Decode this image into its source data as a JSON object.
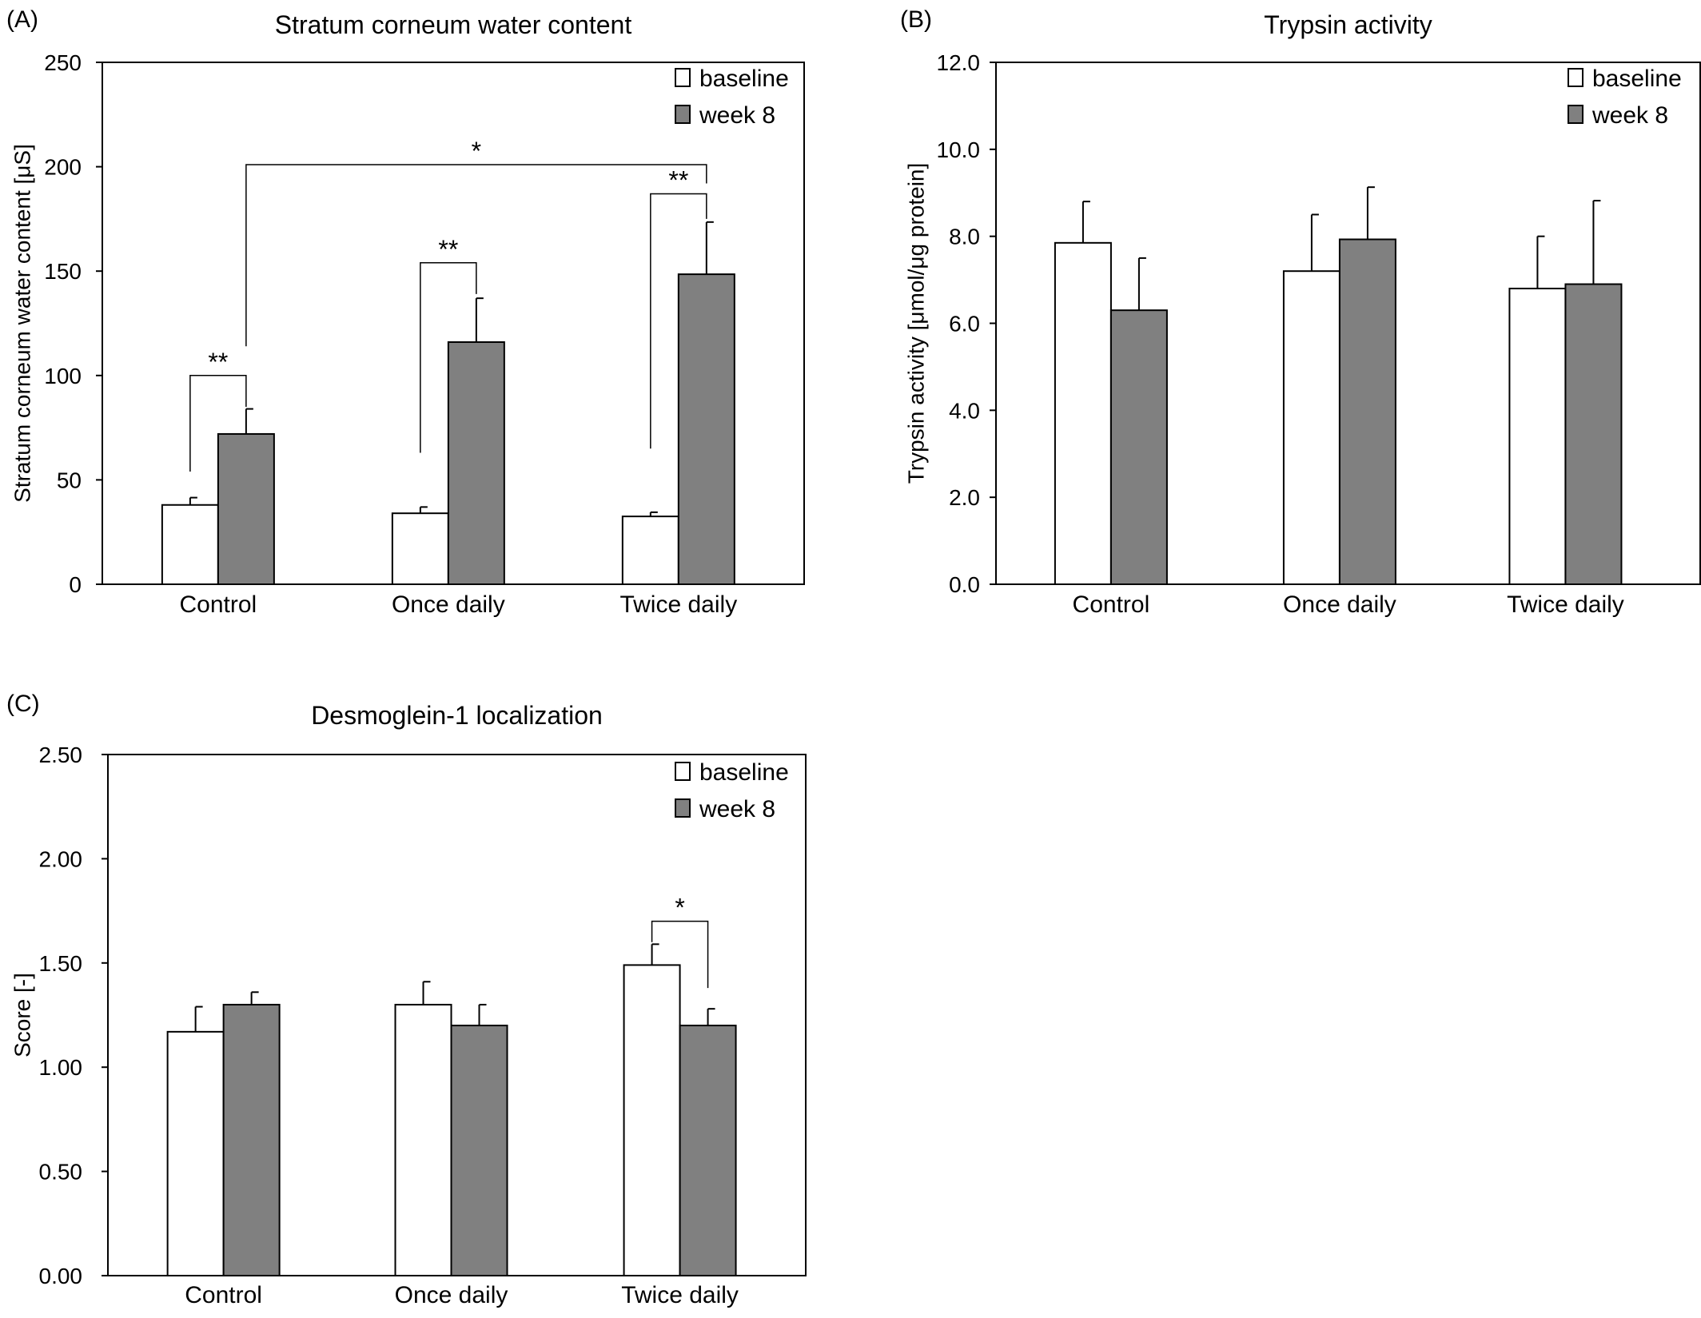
{
  "figure": {
    "colors": {
      "baseline": "#ffffff",
      "week8": "#808080",
      "stroke": "#000000"
    }
  },
  "chart_data": [
    {
      "panel_label": "(A)",
      "type": "bar",
      "title": "Stratum corneum water content",
      "xlabel": "",
      "ylabel": "Stratum corneum water content [μS]",
      "ylim": [
        0,
        250
      ],
      "yticks": [
        "0",
        "50",
        "100",
        "150",
        "200",
        "250"
      ],
      "ytick_values": [
        0,
        50,
        100,
        150,
        200,
        250
      ],
      "categories": [
        "Control",
        "Once daily",
        "Twice daily"
      ],
      "legend_position": "top-right",
      "grid": false,
      "series": [
        {
          "name": "baseline",
          "color": "#ffffff",
          "values": [
            38,
            34,
            32.5
          ],
          "errors": [
            3.5,
            3,
            2
          ]
        },
        {
          "name": "week 8",
          "color": "#808080",
          "values": [
            72,
            116,
            148.5
          ],
          "errors": [
            12,
            21,
            25
          ]
        }
      ],
      "significance": [
        {
          "label": "**",
          "from": [
            0,
            0
          ],
          "to": [
            0,
            1
          ],
          "y": 100,
          "left_end": 54,
          "right_end": 85
        },
        {
          "label": "**",
          "from": [
            1,
            0
          ],
          "to": [
            1,
            1
          ],
          "y": 154,
          "left_end": 63,
          "right_end": 139
        },
        {
          "label": "**",
          "from": [
            2,
            0
          ],
          "to": [
            2,
            1
          ],
          "y": 187,
          "left_end": 65,
          "right_end": 175
        },
        {
          "label": "*",
          "from": [
            0,
            1
          ],
          "to": [
            2,
            1
          ],
          "y": 201,
          "left_end": 114,
          "right_end": 192
        }
      ]
    },
    {
      "panel_label": "(B)",
      "type": "bar",
      "title": "Trypsin activity",
      "xlabel": "",
      "ylabel": "Trypsin activity [μmol/μg protein]",
      "ylim": [
        0,
        12
      ],
      "yticks": [
        "0.0",
        "2.0",
        "4.0",
        "6.0",
        "8.0",
        "10.0",
        "12.0"
      ],
      "ytick_values": [
        0,
        2,
        4,
        6,
        8,
        10,
        12
      ],
      "categories": [
        "Control",
        "Once daily",
        "Twice daily"
      ],
      "legend_position": "top-right",
      "grid": false,
      "series": [
        {
          "name": "baseline",
          "color": "#ffffff",
          "values": [
            7.85,
            7.2,
            6.8
          ],
          "errors": [
            0.95,
            1.3,
            1.2
          ]
        },
        {
          "name": "week 8",
          "color": "#808080",
          "values": [
            6.3,
            7.93,
            6.9
          ],
          "errors": [
            1.2,
            1.2,
            1.92
          ]
        }
      ],
      "significance": []
    },
    {
      "panel_label": "(C)",
      "type": "bar",
      "title": "Desmoglein-1 localization",
      "xlabel": "",
      "ylabel": "Score [-]",
      "ylim": [
        0,
        2.5
      ],
      "yticks": [
        "0.00",
        "0.50",
        "1.00",
        "1.50",
        "2.00",
        "2.50"
      ],
      "ytick_values": [
        0,
        0.5,
        1,
        1.5,
        2,
        2.5
      ],
      "categories": [
        "Control",
        "Once daily",
        "Twice daily"
      ],
      "legend_position": "top-right",
      "grid": false,
      "series": [
        {
          "name": "baseline",
          "color": "#ffffff",
          "values": [
            1.17,
            1.3,
            1.49
          ],
          "errors": [
            0.12,
            0.11,
            0.1
          ]
        },
        {
          "name": "week 8",
          "color": "#808080",
          "values": [
            1.3,
            1.2,
            1.2
          ],
          "errors": [
            0.06,
            0.1,
            0.08
          ]
        }
      ],
      "significance": [
        {
          "label": "*",
          "from": [
            2,
            0
          ],
          "to": [
            2,
            1
          ],
          "y": 1.7,
          "left_end": 1.6,
          "right_end": 1.38
        }
      ]
    }
  ]
}
